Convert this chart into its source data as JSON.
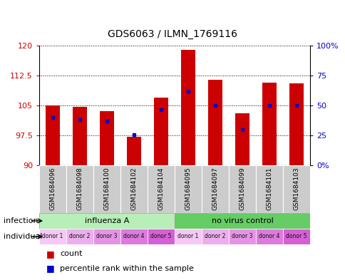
{
  "title": "GDS6063 / ILMN_1769116",
  "samples": [
    "GSM1684096",
    "GSM1684098",
    "GSM1684100",
    "GSM1684102",
    "GSM1684104",
    "GSM1684095",
    "GSM1684097",
    "GSM1684099",
    "GSM1684101",
    "GSM1684103"
  ],
  "red_values": [
    105.0,
    104.7,
    103.5,
    97.2,
    107.0,
    119.0,
    111.5,
    103.0,
    110.7,
    110.5
  ],
  "blue_values": [
    102.0,
    101.5,
    101.0,
    97.6,
    104.0,
    108.5,
    105.0,
    99.0,
    105.0,
    105.0
  ],
  "ymin": 90,
  "ymax": 120,
  "yticks": [
    90,
    97.5,
    105,
    112.5,
    120
  ],
  "ytick_labels": [
    "90",
    "97.5",
    "105",
    "112.5",
    "120"
  ],
  "right_yticks": [
    0,
    25,
    50,
    75,
    100
  ],
  "right_ytick_labels": [
    "0%",
    "25",
    "50",
    "75",
    "100%"
  ],
  "individual_labels": [
    "donor 1",
    "donor 2",
    "donor 3",
    "donor 4",
    "donor 5",
    "donor 1",
    "donor 2",
    "donor 3",
    "donor 4",
    "donor 5"
  ],
  "donor_colors": [
    "#f5c8f5",
    "#edaeed",
    "#e594e5",
    "#dd7add",
    "#d560d5",
    "#f5c8f5",
    "#edaeed",
    "#e594e5",
    "#dd7add",
    "#d560d5"
  ],
  "inf_group1_color": "#b8eeb8",
  "inf_group2_color": "#66cc66",
  "sample_bg_color": "#cccccc",
  "bar_color": "#cc0000",
  "dot_color": "#0000cc",
  "legend_count": "count",
  "legend_percentile": "percentile rank within the sample",
  "bar_width": 0.55
}
